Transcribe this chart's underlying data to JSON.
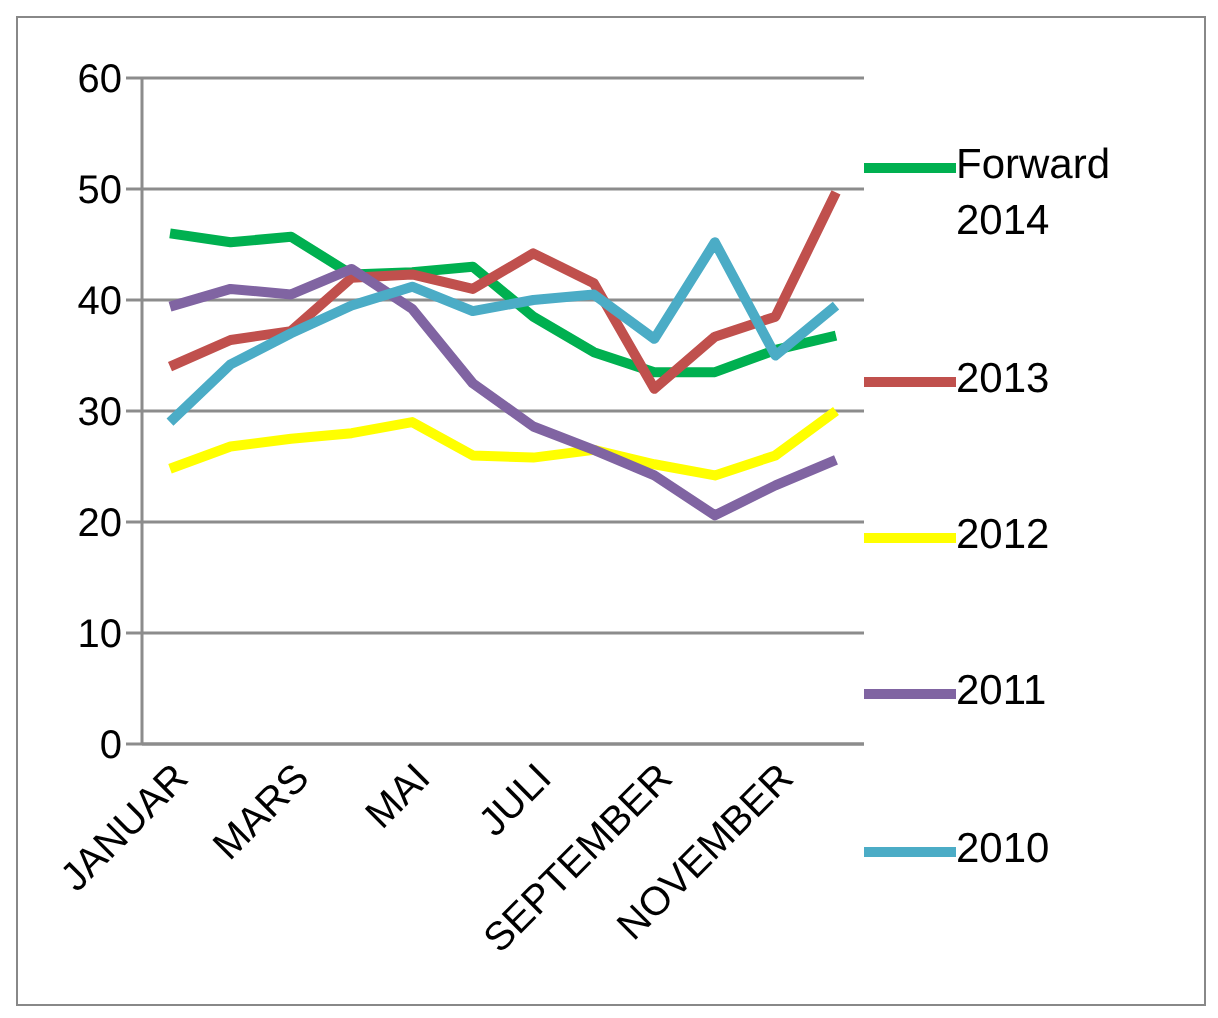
{
  "chart_data": {
    "type": "line",
    "categories": [
      "JANUAR",
      null,
      "MARS",
      null,
      "MAI",
      null,
      "JULI",
      null,
      "SEPTEMBER",
      null,
      "NOVEMBER",
      null
    ],
    "series": [
      {
        "name": "Forward 2014",
        "color": "#00b050",
        "values": [
          46,
          45.2,
          45.7,
          42.3,
          42.5,
          43,
          38.5,
          35.3,
          33.5,
          33.5,
          35.5,
          36.8
        ]
      },
      {
        "name": "2013",
        "color": "#c0504d",
        "values": [
          34,
          36.4,
          37.2,
          42,
          42.3,
          41,
          44.2,
          41.5,
          32,
          36.7,
          38.5,
          49.7
        ]
      },
      {
        "name": "2012",
        "color": "#ffff00",
        "values": [
          24.8,
          26.8,
          27.5,
          28,
          29,
          26,
          25.8,
          26.5,
          25.2,
          24.2,
          26,
          30
        ]
      },
      {
        "name": "2011",
        "color": "#8064a2",
        "values": [
          39.4,
          41,
          40.5,
          42.8,
          39.2,
          32.5,
          28.6,
          26.5,
          24.2,
          20.6,
          23.3,
          25.6
        ]
      },
      {
        "name": "2010",
        "color": "#4bacc6",
        "values": [
          29,
          34.2,
          37,
          39.5,
          41.2,
          39,
          40,
          40.5,
          36.5,
          45.2,
          35,
          39.5
        ]
      }
    ],
    "ylim": [
      0,
      60
    ],
    "yticks": [
      0,
      10,
      20,
      30,
      40,
      50,
      60
    ],
    "grid": "y",
    "legend": "right",
    "marker": "none",
    "line_style": "solid"
  }
}
